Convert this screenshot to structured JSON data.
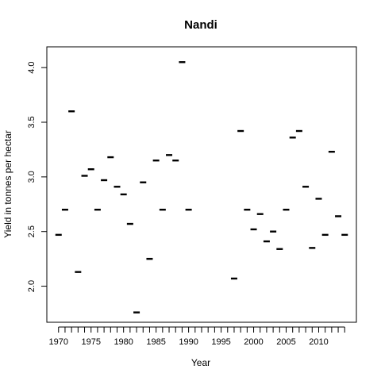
{
  "chart_data": {
    "type": "scatter",
    "title": "Nandi",
    "xlabel": "Year",
    "ylabel": "Yield in tonnes per hectar",
    "xlim": [
      1968.2,
      2015.8
    ],
    "ylim": [
      1.67,
      4.19
    ],
    "x_ticks": [
      1970,
      1975,
      1980,
      1985,
      1990,
      1995,
      2000,
      2005,
      2010
    ],
    "x_minor_ticks": [
      1970,
      1971,
      1972,
      1973,
      1974,
      1975,
      1976,
      1977,
      1978,
      1979,
      1980,
      1981,
      1982,
      1983,
      1984,
      1985,
      1986,
      1987,
      1988,
      1989,
      1990,
      1991,
      1992,
      1993,
      1994,
      1995,
      1996,
      1997,
      1998,
      1999,
      2000,
      2001,
      2002,
      2003,
      2004,
      2005,
      2006,
      2007,
      2008,
      2009,
      2010,
      2011,
      2012,
      2013,
      2014
    ],
    "y_ticks": [
      2.0,
      2.5,
      3.0,
      3.5,
      4.0
    ],
    "y_tick_labels": [
      "2.0",
      "2.5",
      "3.0",
      "3.5",
      "4.0"
    ],
    "marker": "dash",
    "grid": false,
    "points": [
      {
        "x": 1970,
        "y": 2.47
      },
      {
        "x": 1971,
        "y": 2.7
      },
      {
        "x": 1972,
        "y": 3.6
      },
      {
        "x": 1973,
        "y": 2.13
      },
      {
        "x": 1974,
        "y": 3.01
      },
      {
        "x": 1975,
        "y": 3.07
      },
      {
        "x": 1976,
        "y": 2.7
      },
      {
        "x": 1977,
        "y": 2.97
      },
      {
        "x": 1978,
        "y": 3.18
      },
      {
        "x": 1979,
        "y": 2.91
      },
      {
        "x": 1980,
        "y": 2.84
      },
      {
        "x": 1981,
        "y": 2.57
      },
      {
        "x": 1982,
        "y": 1.76
      },
      {
        "x": 1983,
        "y": 2.95
      },
      {
        "x": 1984,
        "y": 2.25
      },
      {
        "x": 1985,
        "y": 3.15
      },
      {
        "x": 1986,
        "y": 2.7
      },
      {
        "x": 1987,
        "y": 3.2
      },
      {
        "x": 1988,
        "y": 3.15
      },
      {
        "x": 1989,
        "y": 4.05
      },
      {
        "x": 1990,
        "y": 2.7
      },
      {
        "x": 1997,
        "y": 2.07
      },
      {
        "x": 1998,
        "y": 3.42
      },
      {
        "x": 1999,
        "y": 2.7
      },
      {
        "x": 2000,
        "y": 2.52
      },
      {
        "x": 2001,
        "y": 2.66
      },
      {
        "x": 2002,
        "y": 2.41
      },
      {
        "x": 2003,
        "y": 2.5
      },
      {
        "x": 2004,
        "y": 2.34
      },
      {
        "x": 2005,
        "y": 2.7
      },
      {
        "x": 2006,
        "y": 3.36
      },
      {
        "x": 2007,
        "y": 3.42
      },
      {
        "x": 2008,
        "y": 2.91
      },
      {
        "x": 2009,
        "y": 2.35
      },
      {
        "x": 2010,
        "y": 2.8
      },
      {
        "x": 2011,
        "y": 2.47
      },
      {
        "x": 2012,
        "y": 3.23
      },
      {
        "x": 2013,
        "y": 2.64
      },
      {
        "x": 2014,
        "y": 2.47
      }
    ]
  }
}
